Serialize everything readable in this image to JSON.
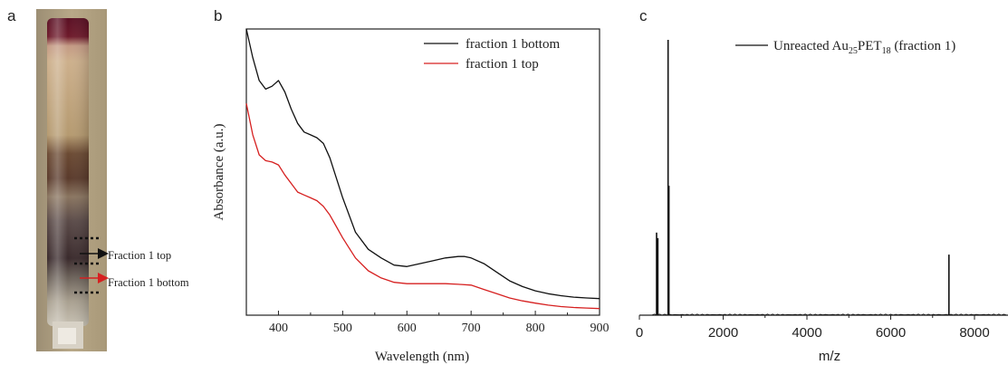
{
  "figure": {
    "panel_a_letter": "a",
    "panel_b_letter": "b",
    "panel_c_letter": "c"
  },
  "photo": {
    "labels": [
      "Fraction 1 top",
      "Fraction 1 bottom"
    ],
    "arrow_colors": [
      "#111111",
      "#d62020"
    ]
  },
  "chart_data": [
    {
      "type": "line",
      "title": "",
      "xlabel": "Wavelength (nm)",
      "ylabel": "Absorbance (a.u.)",
      "xlim": [
        350,
        900
      ],
      "ylim": [
        0,
        1.0
      ],
      "x_ticks": [
        "400",
        "500",
        "600",
        "700",
        "800",
        "900"
      ],
      "x_tick_values": [
        400,
        500,
        600,
        700,
        800,
        900
      ],
      "legend_position": "top-right",
      "series": [
        {
          "name": "fraction 1 bottom",
          "color": "#111111",
          "x": [
            350,
            360,
            370,
            380,
            390,
            400,
            410,
            420,
            430,
            440,
            450,
            460,
            470,
            480,
            490,
            500,
            520,
            540,
            560,
            580,
            600,
            620,
            640,
            660,
            680,
            690,
            700,
            720,
            740,
            760,
            780,
            800,
            820,
            840,
            860,
            880,
            900
          ],
          "y": [
            1.0,
            0.9,
            0.82,
            0.79,
            0.8,
            0.82,
            0.78,
            0.72,
            0.67,
            0.64,
            0.63,
            0.62,
            0.6,
            0.55,
            0.48,
            0.41,
            0.29,
            0.23,
            0.2,
            0.175,
            0.17,
            0.18,
            0.19,
            0.2,
            0.205,
            0.205,
            0.2,
            0.18,
            0.15,
            0.12,
            0.1,
            0.085,
            0.075,
            0.068,
            0.063,
            0.06,
            0.058
          ]
        },
        {
          "name": "fraction 1 top",
          "color": "#d62020",
          "x": [
            350,
            360,
            370,
            380,
            390,
            400,
            410,
            420,
            430,
            440,
            450,
            460,
            470,
            480,
            490,
            500,
            520,
            540,
            560,
            580,
            600,
            620,
            640,
            660,
            680,
            700,
            720,
            740,
            760,
            780,
            800,
            820,
            840,
            860,
            880,
            900
          ],
          "y": [
            0.74,
            0.63,
            0.56,
            0.54,
            0.535,
            0.525,
            0.49,
            0.46,
            0.43,
            0.42,
            0.41,
            0.4,
            0.38,
            0.35,
            0.31,
            0.27,
            0.2,
            0.155,
            0.13,
            0.115,
            0.11,
            0.11,
            0.11,
            0.11,
            0.108,
            0.105,
            0.09,
            0.075,
            0.06,
            0.05,
            0.042,
            0.035,
            0.03,
            0.027,
            0.025,
            0.023
          ]
        }
      ]
    },
    {
      "type": "bar",
      "title": "",
      "xlabel": "m/z",
      "ylabel": "",
      "xlim": [
        0,
        8800
      ],
      "ylim": [
        0,
        1.0
      ],
      "x_ticks": [
        "0",
        "2000",
        "4000",
        "6000",
        "8000"
      ],
      "x_tick_values": [
        0,
        2000,
        4000,
        6000,
        8000
      ],
      "legend_position": "top-right",
      "series": [
        {
          "name": "Unreacted Au25PET18 (fraction 1)",
          "legend_main": "Unreacted Au",
          "legend_sub1": "25",
          "legend_mid": "PET",
          "legend_sub2": "18",
          "legend_tail": " (fraction 1)",
          "color": "#111111",
          "peaks_mz": [
            410,
            440,
            685,
            705,
            7390
          ],
          "peaks_intensity": [
            0.3,
            0.28,
            1.0,
            0.47,
            0.22
          ]
        }
      ]
    }
  ]
}
